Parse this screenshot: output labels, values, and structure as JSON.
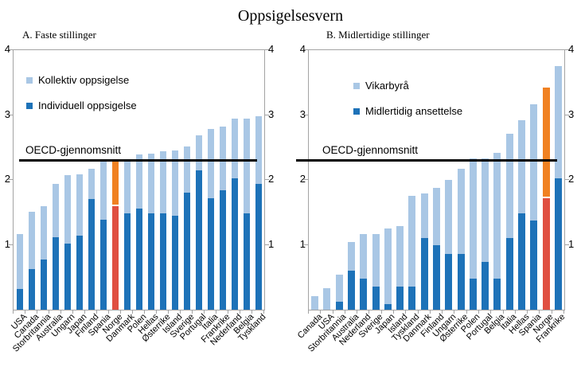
{
  "title": "Oppsigelsesvern",
  "oecd": {
    "label": "OECD-gjennomsnitt",
    "value": 2.29
  },
  "colors": {
    "light_blue": "#a9c7e5",
    "dark_blue": "#1d72b8",
    "highlight_orange": "#f08122",
    "highlight_red": "#e04f41",
    "axis": "#a3a3a3",
    "oecd_line": "#000000",
    "text": "#000000",
    "background": "#ffffff"
  },
  "chart_data": [
    {
      "type": "bar",
      "stacked": true,
      "panel_label": "A. Faste stillinger",
      "ylim": [
        0,
        4
      ],
      "yticks": [
        1,
        2,
        3,
        4
      ],
      "grid": false,
      "oecd_line": 2.29,
      "highlight_category": "Norge",
      "highlight_index": 8,
      "legend": [
        {
          "key": "kollektiv-oppsigelse",
          "label": "Kollektiv oppsigelse",
          "color_key": "light_blue"
        },
        {
          "key": "individuell-oppsigelse",
          "label": "Individuell oppsigelse",
          "color_key": "dark_blue"
        }
      ],
      "categories": [
        "USA",
        "Canada",
        "Storbritannia",
        "Australia",
        "Ungarn",
        "Japan",
        "Finland",
        "Spania",
        "Norge",
        "Danmark",
        "Polen",
        "Hellas",
        "Østerrike",
        "Island",
        "Sverige",
        "Portugal",
        "Italia",
        "Frankrike",
        "Nederland",
        "Belgia",
        "Tyskland"
      ],
      "series": [
        {
          "key": "individuell-oppsigelse",
          "name": "Individuell oppsigelse",
          "color_key": "dark_blue",
          "highlight_color_key": "highlight_red",
          "values": [
            0.32,
            0.63,
            0.77,
            1.12,
            1.02,
            1.14,
            1.71,
            1.39,
            1.6,
            1.48,
            1.56,
            1.48,
            1.49,
            1.45,
            1.8,
            2.15,
            1.72,
            1.84,
            2.02,
            1.49,
            1.94
          ]
        },
        {
          "key": "kollektiv-oppsigelse",
          "name": "Kollektiv oppsigelse",
          "color_key": "light_blue",
          "highlight_color_key": "highlight_orange",
          "values": [
            0.85,
            0.88,
            0.83,
            0.82,
            1.05,
            0.95,
            0.46,
            0.89,
            0.71,
            0.84,
            0.83,
            0.93,
            0.95,
            1.01,
            0.72,
            0.54,
            1.07,
            0.98,
            0.92,
            1.46,
            1.04
          ]
        }
      ],
      "totals": [
        1.17,
        1.51,
        1.6,
        1.94,
        2.07,
        2.09,
        2.17,
        2.28,
        2.31,
        2.32,
        2.39,
        2.41,
        2.44,
        2.46,
        2.52,
        2.69,
        2.79,
        2.82,
        2.94,
        2.95,
        2.98
      ]
    },
    {
      "type": "bar",
      "stacked": true,
      "panel_label": "B. Midlertidige stillinger",
      "ylim": [
        0,
        4
      ],
      "yticks": [
        1,
        2,
        3,
        4
      ],
      "grid": false,
      "oecd_line": 2.29,
      "highlight_category": "Norge",
      "highlight_index": 19,
      "legend": [
        {
          "key": "vikarbyra",
          "label": "Vikarbyrå",
          "color_key": "light_blue"
        },
        {
          "key": "midlertidig-ansettelse",
          "label": "Midlertidig ansettelse",
          "color_key": "dark_blue"
        }
      ],
      "categories": [
        "Canada",
        "USA",
        "Storbritannia",
        "Australia",
        "Nederland",
        "Sverige",
        "Japan",
        "Island",
        "Tyskland",
        "Danmark",
        "Finland",
        "Ungarn",
        "Østerrike",
        "Polen",
        "Portugal",
        "Belgia",
        "Italia",
        "Hellas",
        "Spania",
        "Norge",
        "Frankrike"
      ],
      "series": [
        {
          "key": "midlertidig-ansettelse",
          "name": "Midlertidig ansettelse",
          "color_key": "dark_blue",
          "highlight_color_key": "highlight_red",
          "values": [
            0.0,
            0.0,
            0.12,
            0.6,
            0.48,
            0.36,
            0.09,
            0.36,
            0.36,
            1.1,
            0.99,
            0.86,
            0.86,
            0.48,
            0.74,
            0.48,
            1.11,
            1.49,
            1.37,
            1.72,
            2.02
          ]
        },
        {
          "key": "vikarbyra",
          "name": "Vikarbyrå",
          "color_key": "light_blue",
          "highlight_color_key": "highlight_orange",
          "values": [
            0.21,
            0.33,
            0.42,
            0.44,
            0.69,
            0.81,
            1.16,
            0.93,
            1.39,
            0.69,
            0.89,
            1.14,
            1.31,
            1.85,
            1.59,
            1.94,
            1.6,
            1.43,
            1.8,
            1.7,
            1.73
          ]
        }
      ],
      "totals": [
        0.21,
        0.33,
        0.54,
        1.04,
        1.17,
        1.17,
        1.25,
        1.29,
        1.75,
        1.79,
        1.88,
        2.0,
        2.17,
        2.33,
        2.33,
        2.42,
        2.71,
        2.92,
        3.17,
        3.42,
        3.75
      ]
    }
  ]
}
